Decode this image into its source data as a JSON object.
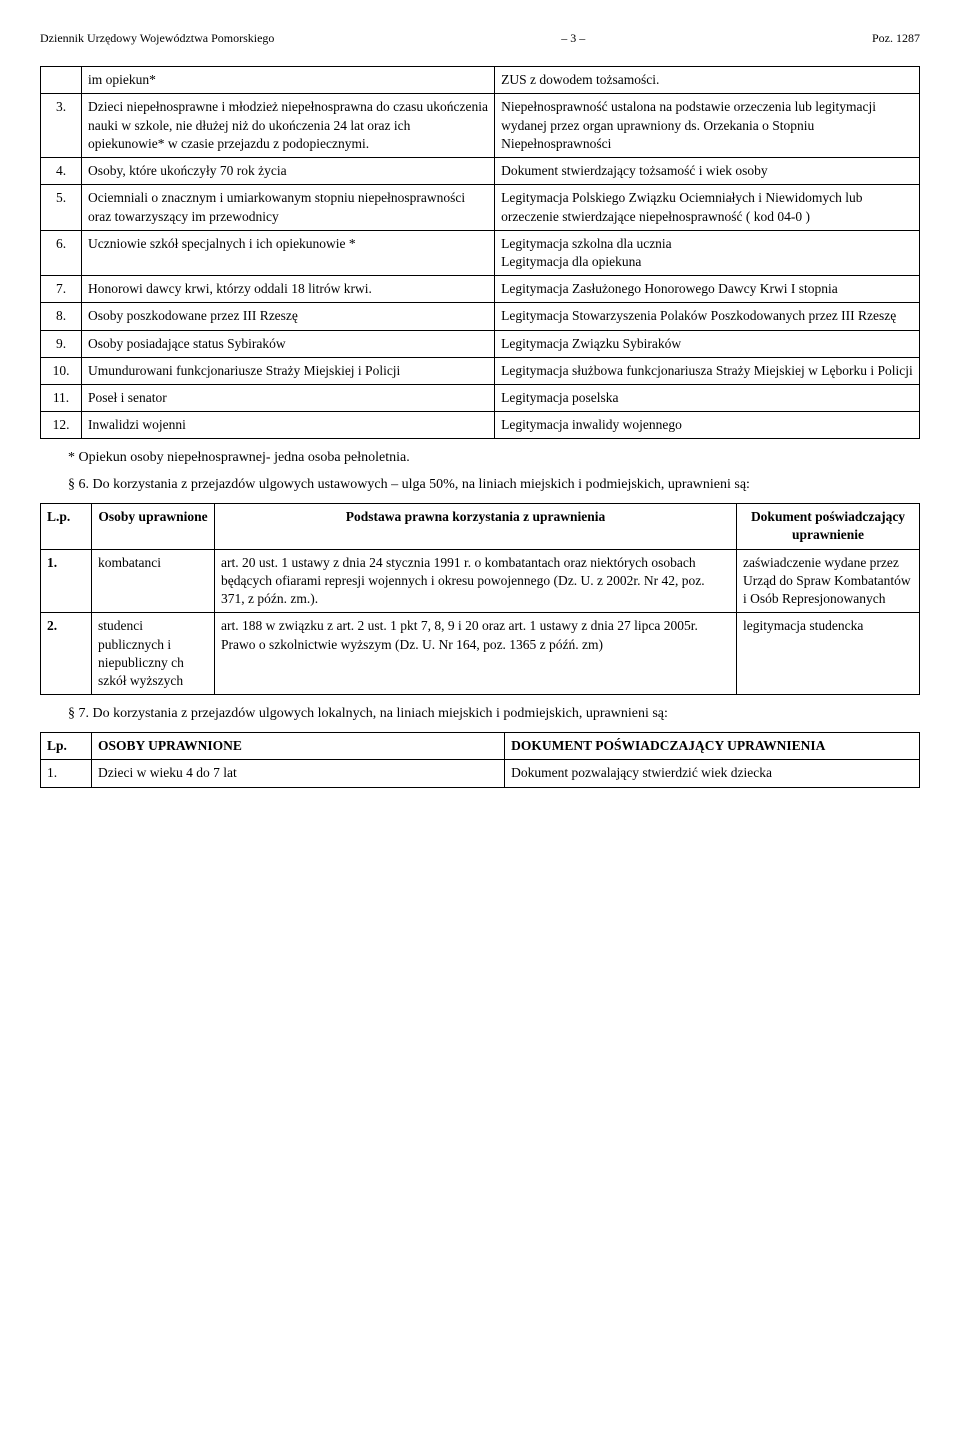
{
  "header": {
    "left": "Dziennik Urzędowy Województwa Pomorskiego",
    "mid": "– 3 –",
    "right": "Poz. 1287"
  },
  "table1": {
    "rows": [
      {
        "n": "",
        "a": "im opiekun*",
        "b": "ZUS z dowodem tożsamości."
      },
      {
        "n": "3.",
        "a": "Dzieci niepełnosprawne i młodzież niepełnosprawna do czasu ukończenia nauki w szkole, nie dłużej niż do ukończenia 24 lat oraz ich opiekunowie* w czasie przejazdu z podopiecznymi.",
        "b": "Niepełnosprawność ustalona na podstawie orzeczenia lub legitymacji wydanej przez organ uprawniony ds. Orzekania o Stopniu Niepełnosprawności"
      },
      {
        "n": "4.",
        "a": "Osoby, które ukończyły 70 rok życia",
        "b": "Dokument stwierdzający tożsamość i wiek osoby"
      },
      {
        "n": "5.",
        "a": "Ociemniali o znacznym i umiarkowanym stopniu niepełnosprawności oraz towarzyszący im przewodnicy",
        "b": "Legitymacja Polskiego Związku Ociemniałych i Niewidomych lub orzeczenie stwierdzające niepełnosprawność ( kod 04-0 )"
      },
      {
        "n": "6.",
        "a": "Uczniowie szkół specjalnych i ich opiekunowie *",
        "b": "Legitymacja szkolna dla ucznia\nLegitymacja dla opiekuna"
      },
      {
        "n": "7.",
        "a": "Honorowi dawcy krwi, którzy oddali 18 litrów krwi.",
        "b": "Legitymacja Zasłużonego Honorowego Dawcy Krwi I stopnia"
      },
      {
        "n": "8.",
        "a": "Osoby poszkodowane przez III Rzeszę",
        "b": "Legitymacja Stowarzyszenia Polaków Poszkodowanych przez III Rzeszę"
      },
      {
        "n": "9.",
        "a": "Osoby posiadające status Sybiraków",
        "b": "Legitymacja Związku Sybiraków"
      },
      {
        "n": "10.",
        "a": "Umundurowani funkcjonariusze Straży Miejskiej i Policji",
        "b": "Legitymacja służbowa funkcjonariusza Straży Miejskiej w Lęborku i Policji"
      },
      {
        "n": "11.",
        "a": "Poseł i senator",
        "b": "Legitymacja poselska"
      },
      {
        "n": "12.",
        "a": "Inwalidzi wojenni",
        "b": "Legitymacja inwalidy wojennego"
      }
    ]
  },
  "para1": "* Opiekun osoby niepełnosprawnej- jedna osoba pełnoletnia.",
  "para2": "§ 6. Do korzystania z przejazdów ulgowych ustawowych – ulga 50%, na liniach miejskich i podmiejskich, uprawnieni są:",
  "table2": {
    "head": {
      "lp": "L.p.",
      "osb": "Osoby uprawnione",
      "podst": "Podstawa prawna korzystania z uprawnienia",
      "dok": "Dokument poświadczający uprawnienie"
    },
    "rows": [
      {
        "n": "1.",
        "a": "kombatanci",
        "b": "art. 20 ust. 1 ustawy z dnia 24 stycznia 1991 r. o kombatantach oraz niektórych osobach będących ofiarami represji wojennych i okresu powojennego (Dz. U. z 2002r. Nr 42, poz. 371, z późn. zm.).",
        "c": "zaświadczenie wydane przez Urząd do Spraw Kombatantów i Osób Represjonowanych"
      },
      {
        "n": "2.",
        "a": "studenci publicznych i niepubliczny ch szkół wyższych",
        "b": "art. 188 w związku z art. 2 ust. 1 pkt 7, 8, 9 i 20 oraz art. 1 ustawy z dnia 27 lipca 2005r. Prawo o szkolnictwie wyższym (Dz. U. Nr 164, poz. 1365 z późń. zm)",
        "c": "legitymacja studencka"
      }
    ]
  },
  "para3": "§ 7. Do korzystania z przejazdów ulgowych lokalnych, na liniach miejskich i podmiejskich, uprawnieni są:",
  "table3": {
    "head": {
      "lp": "Lp.",
      "up": "OSOBY UPRAWNIONE",
      "dok": "DOKUMENT    POŚWIADCZAJĄCY UPRAWNIENIA"
    },
    "rows": [
      {
        "n": "1.",
        "a": "Dzieci w wieku 4 do 7 lat",
        "b": "Dokument pozwalający stwierdzić wiek dziecka"
      }
    ]
  }
}
